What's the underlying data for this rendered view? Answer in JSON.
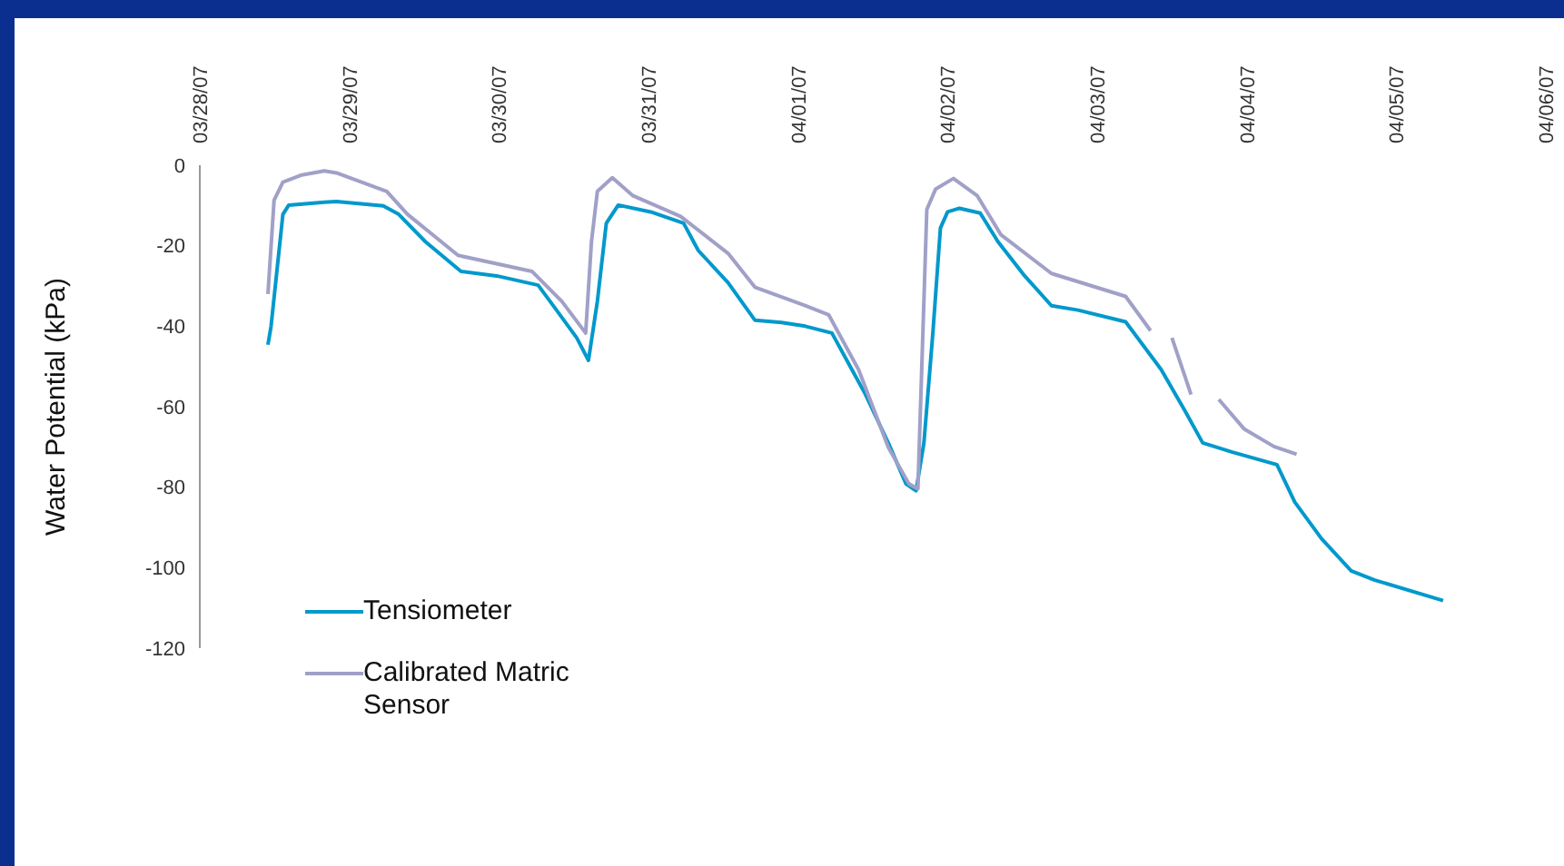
{
  "chart_data": {
    "type": "line",
    "ylabel": "Water Potential (kPa)",
    "ylim": [
      -120,
      0
    ],
    "yticks": [
      -120,
      -100,
      -80,
      -60,
      -40,
      -20,
      0
    ],
    "xlim": [
      "--03-28",
      "--04-06"
    ],
    "xticks": [
      {
        "value": "--03-28",
        "label": "03/28/07"
      },
      {
        "value": "--03-29",
        "label": "03/29/07"
      },
      {
        "value": "--03-30",
        "label": "03/30/07"
      },
      {
        "value": "--03-31",
        "label": "03/31/07"
      },
      {
        "value": "--04-01",
        "label": "04/01/07"
      },
      {
        "value": "--04-02",
        "label": "04/02/07"
      },
      {
        "value": "--04-03",
        "label": "04/03/07"
      },
      {
        "value": "--04-04",
        "label": "04/04/07"
      },
      {
        "value": "--04-05",
        "label": "04/05/07"
      },
      {
        "value": "--04-06",
        "label": "04/06/07"
      }
    ],
    "grid": false,
    "legend": "bottom left",
    "marker": "none",
    "line_style": "solid",
    "series": [
      {
        "name": "Tensiometer",
        "color": "#0099cc",
        "x": [
          "--03-28T10:56",
          "--03-28T11:26",
          "--03-28T13:20",
          "--03-28T14:17",
          "--03-28T20:00",
          "--03-28T21:55",
          "--03-29T05:26",
          "--03-29T07:55",
          "--03-29T12:12",
          "--03-29T17:55",
          "--03-29T23:38",
          "--03-30T06:17",
          "--03-30T08:12",
          "--03-30T12:29",
          "--03-30T14:22",
          "--03-30T15:48",
          "--03-30T17:14",
          "--03-30T19:09",
          "--03-31T00:22",
          "--03-31T05:38",
          "--03-31T08:00",
          "--03-31T12:46",
          "--03-31T17:04",
          "--03-31T21:20",
          "--04-01T01:09",
          "--04-01T05:26",
          "--04-01T10:40",
          "--04-01T14:29",
          "--04-01T17:20",
          "--04-01T18:56",
          "--04-01T20:12",
          "--04-01T21:38",
          "--04-01T22:51",
          "--04-02T00:00",
          "--04-02T01:55",
          "--04-02T05:14",
          "--04-02T08:05",
          "--04-02T12:22",
          "--04-02T16:40",
          "--04-02T20:56",
          "--04-03T04:34",
          "--04-03T10:17",
          "--04-03T14:05",
          "--04-03T16:56",
          "--04-03T21:43",
          "--04-04T04:51",
          "--04-04T07:43",
          "--04-04T12:00",
          "--04-04T16:46",
          "--04-04T20:34",
          "--04-05T07:31"
        ],
        "values": [
          -44.6,
          -40,
          -12.2,
          -9.9,
          -9.2,
          -9,
          -10.1,
          -12.2,
          -19,
          -26.4,
          -27.5,
          -29.8,
          -33.8,
          -42.9,
          -48.5,
          -33.8,
          -14.4,
          -9.9,
          -11.6,
          -14.4,
          -21.2,
          -29.2,
          -38.5,
          -39.1,
          -40,
          -41.7,
          -56.5,
          -69,
          -79.2,
          -80.9,
          -69,
          -41.7,
          -15.6,
          -11.6,
          -10.7,
          -11.9,
          -19,
          -27.5,
          -34.9,
          -36,
          -38.9,
          -50.8,
          -61,
          -69,
          -71.3,
          -74.4,
          -83.7,
          -92.8,
          -100.8,
          -103.1,
          -108.2
        ]
      },
      {
        "name": "Calibrated Matric Sensor",
        "color": "#a0a0c8",
        "x": [
          "--03-28T10:56",
          "--03-28T11:55",
          "--03-28T13:20",
          "--03-28T16:12",
          "--03-28T20:00",
          "--03-28T21:55",
          "--03-29T06:00",
          "--03-29T09:20",
          "--03-29T17:26",
          "--03-30T05:20",
          "--03-30T10:05",
          "--03-30T13:55",
          "--03-30T14:51",
          "--03-30T15:48",
          "--03-30T18:12",
          "--03-30T21:31",
          "--03-31T05:09",
          "--03-31T12:46",
          "--03-31T17:04",
          "--04-01T01:09",
          "--04-01T04:56",
          "--04-01T09:43",
          "--04-01T14:29",
          "--04-01T17:48",
          "--04-01T19:14",
          "--04-01T20:40",
          "--04-01T22:05",
          "--04-02T00:56",
          "--04-02T04:46",
          "--04-02T08:34",
          "--04-02T16:40",
          "--04-03T04:34",
          "--04-03T08:34",
          "--04-03T09:30",
          "--04-03T12:00",
          "--04-03T15:04",
          "--04-03T17:00",
          "--04-03T19:31",
          "--04-03T23:38",
          "--04-04T04:22",
          "--04-04T08:00"
        ],
        "values": [
          -32,
          -8.7,
          -4.2,
          -2.5,
          -1.4,
          -1.9,
          -6.5,
          -12.2,
          -22.4,
          -26.4,
          -33.8,
          -41.7,
          -19,
          -6.5,
          -3.1,
          -7.6,
          -12.7,
          -21.9,
          -30.3,
          -34.9,
          -37.2,
          -50.8,
          -70.1,
          -79.2,
          -80.4,
          -11,
          -5.9,
          -3.3,
          -7.6,
          -17.3,
          -26.9,
          -32.6,
          -41.1,
          null,
          -42.9,
          -57,
          null,
          -58.2,
          -65.6,
          -69.9,
          -71.8
        ]
      }
    ]
  }
}
